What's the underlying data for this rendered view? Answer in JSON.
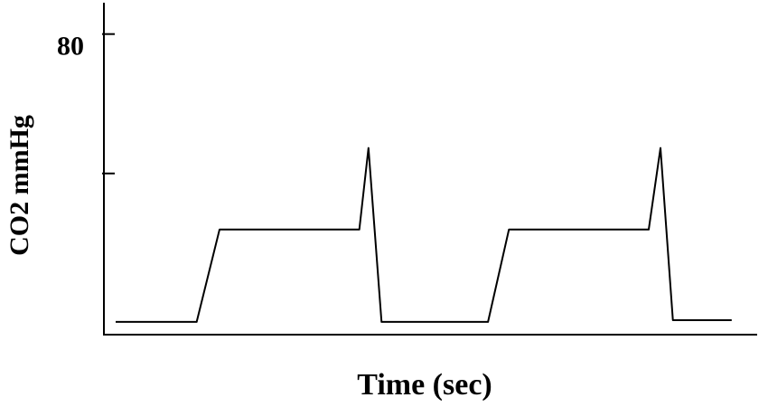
{
  "chart_data": {
    "type": "line",
    "y_label": "CO2 mmHg",
    "x_label": "Time (sec)",
    "x": [
      0.18,
      1.42,
      1.77,
      3.91,
      4.05,
      4.25,
      5.88,
      6.2,
      8.34,
      8.52,
      8.71,
      9.61
    ],
    "series": [
      {
        "color": "#000000",
        "values": [
          -2.6,
          -2.6,
          23.9,
          23.9,
          47.3,
          -2.6,
          -2.6,
          23.9,
          23.9,
          47.3,
          -2.1,
          -2.1
        ]
      }
    ],
    "xlim": [
      0,
      10
    ],
    "ylim": [
      -6,
      89
    ],
    "yticks": [
      {
        "value": 40,
        "label": null
      },
      80
    ],
    "grid": false
  }
}
